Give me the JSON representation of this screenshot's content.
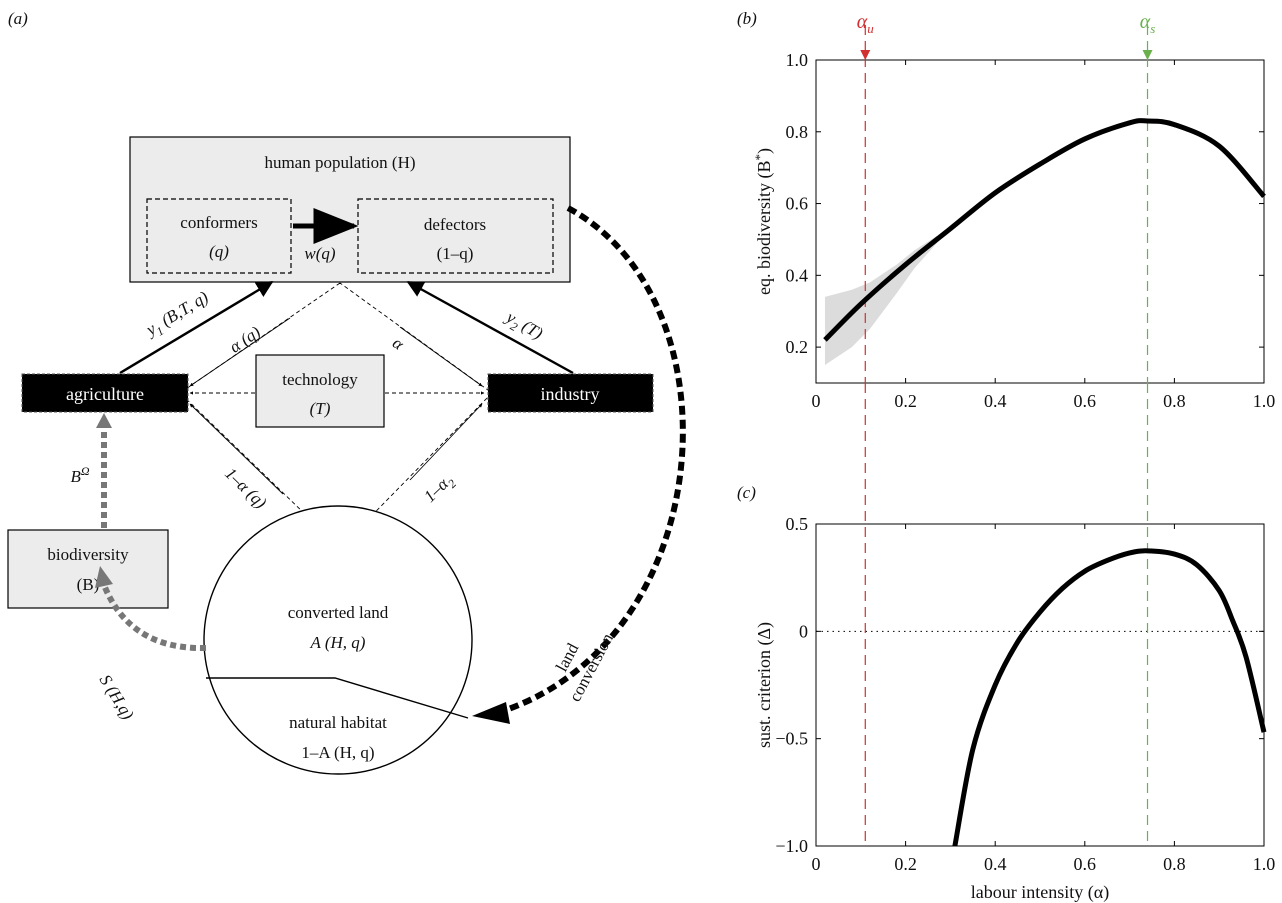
{
  "panel_a": {
    "label": "(a)",
    "human_population": "human population (H)",
    "conformers": [
      "conformers",
      "(q)"
    ],
    "defectors": [
      "defectors",
      "(1–q)"
    ],
    "switch_rate": "w(q)",
    "agriculture": "agriculture",
    "industry": "industry",
    "technology": [
      "technology",
      "(T)"
    ],
    "biodiversity": [
      "biodiversity",
      "(B)"
    ],
    "converted_land": [
      "converted land",
      "A (H, q)"
    ],
    "natural_habitat": [
      "natural habitat",
      "1–A (H, q)"
    ],
    "yield_agri": "y1 (B,T, q)",
    "yield_ind": "y2 (T)",
    "alpha_q": "α (q)",
    "alpha": "α",
    "one_minus_alpha_q": "1–α (q)",
    "one_minus_alpha2": "1–α2",
    "b_omega": "BΩ",
    "species_area": "S (H,q)",
    "land_conversion": [
      "land",
      "conversion"
    ]
  },
  "chart_data": [
    {
      "type": "line",
      "panel_label": "(b)",
      "ylabel": "eq. biodiversity (B*)",
      "xlim": [
        0,
        1
      ],
      "ylim": [
        0.1,
        1.0
      ],
      "xticks": [
        0,
        0.2,
        0.4,
        0.6,
        0.8,
        1.0
      ],
      "xtick_labels": [
        "0",
        "0.2",
        "0.4",
        "0.6",
        "0.8",
        "1.0"
      ],
      "yticks": [
        0.2,
        0.4,
        0.6,
        0.8,
        1.0
      ],
      "ytick_labels": [
        "0.2",
        "0.4",
        "0.6",
        "0.8",
        "1.0"
      ],
      "series": [
        {
          "x": [
            0.02,
            0.1,
            0.2,
            0.3,
            0.4,
            0.5,
            0.6,
            0.7,
            0.74,
            0.8,
            0.9,
            1.0
          ],
          "y": [
            0.22,
            0.32,
            0.43,
            0.53,
            0.63,
            0.71,
            0.78,
            0.825,
            0.83,
            0.82,
            0.76,
            0.62
          ]
        }
      ],
      "shaded_band": {
        "x": [
          0.02,
          0.08,
          0.12,
          0.18,
          0.22,
          0.27
        ],
        "upper": [
          0.34,
          0.36,
          0.38,
          0.43,
          0.47,
          0.51
        ],
        "lower": [
          0.15,
          0.2,
          0.25,
          0.35,
          0.42,
          0.49
        ]
      },
      "markers": [
        {
          "label": "αu",
          "x": 0.11,
          "color": "#d03030"
        },
        {
          "label": "αs",
          "x": 0.74,
          "color": "#6ab04c"
        }
      ]
    },
    {
      "type": "line",
      "panel_label": "(c)",
      "ylabel": "sust. criterion (Δ)",
      "xlabel": "labour intensity (α)",
      "xlim": [
        0,
        1
      ],
      "ylim": [
        -1.0,
        0.5
      ],
      "xticks": [
        0,
        0.2,
        0.4,
        0.6,
        0.8,
        1.0
      ],
      "xtick_labels": [
        "0",
        "0.2",
        "0.4",
        "0.6",
        "0.8",
        "1.0"
      ],
      "yticks": [
        -1.0,
        -0.5,
        0,
        0.5
      ],
      "ytick_labels": [
        "−1.0",
        "−0.5",
        "0",
        "0.5"
      ],
      "series": [
        {
          "x": [
            0.31,
            0.35,
            0.4,
            0.45,
            0.5,
            0.55,
            0.6,
            0.65,
            0.7,
            0.74,
            0.8,
            0.85,
            0.9,
            0.93,
            0.96,
            1.0
          ],
          "y": [
            -1.0,
            -0.55,
            -0.25,
            -0.05,
            0.09,
            0.2,
            0.28,
            0.33,
            0.365,
            0.375,
            0.36,
            0.31,
            0.19,
            0.05,
            -0.12,
            -0.47
          ]
        }
      ],
      "zero_line": true,
      "markers": [
        {
          "x": 0.11,
          "color": "#d03030"
        },
        {
          "x": 0.74,
          "color": "#6ab04c"
        }
      ]
    }
  ]
}
